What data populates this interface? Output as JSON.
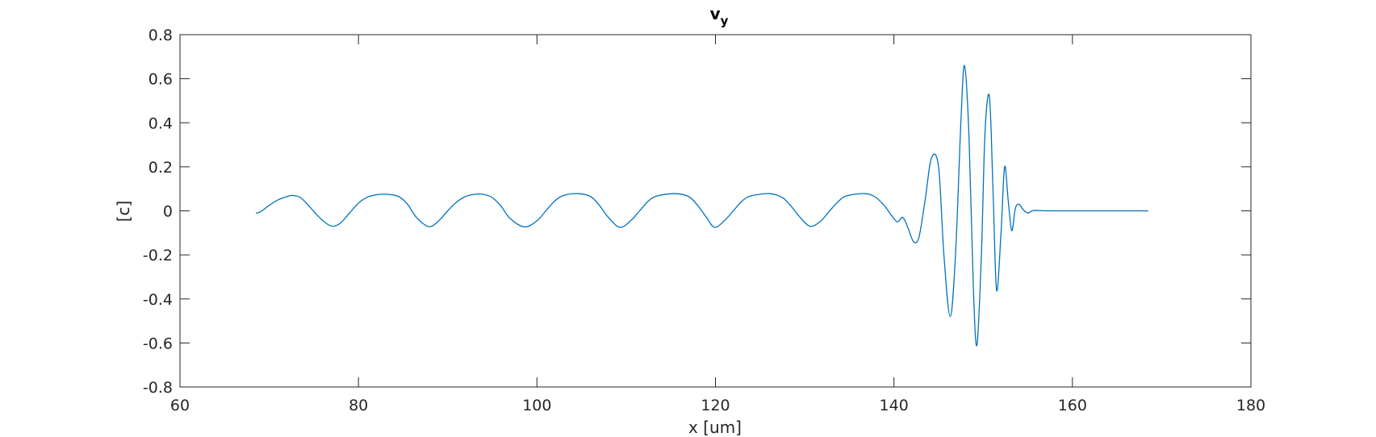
{
  "chart_data": {
    "type": "line",
    "title": "v",
    "title_subscript": "y",
    "xlabel": "x [um]",
    "ylabel": "[c]",
    "xlim": [
      60,
      180
    ],
    "ylim": [
      -0.8,
      0.8
    ],
    "xticks": [
      60,
      80,
      100,
      120,
      140,
      160,
      180
    ],
    "yticks": [
      -0.8,
      -0.6,
      -0.4,
      -0.2,
      0,
      0.2,
      0.4,
      0.6,
      0.8
    ],
    "xtick_labels": [
      "60",
      "80",
      "100",
      "120",
      "140",
      "160",
      "180"
    ],
    "ytick_labels": [
      "-0.8",
      "-0.6",
      "-0.4",
      "-0.2",
      "0",
      "0.2",
      "0.4",
      "0.6",
      "0.8"
    ],
    "grid": false,
    "box": true,
    "series": [
      {
        "color": "#0072BD",
        "x": [
          68.5,
          69.0,
          70.0,
          71.0,
          72.0,
          72.6,
          73.5,
          74.5,
          75.5,
          76.5,
          77.2,
          78.0,
          79.0,
          80.0,
          81.0,
          82.0,
          83.2,
          84.5,
          85.5,
          86.5,
          87.9,
          89.0,
          90.0,
          91.0,
          92.0,
          93.0,
          94.0,
          95.0,
          96.0,
          97.0,
          98.6,
          100.0,
          101.0,
          102.0,
          103.0,
          104.6,
          106.0,
          107.0,
          108.0,
          109.3,
          110.5,
          111.5,
          112.5,
          113.5,
          115.4,
          117.0,
          118.0,
          119.0,
          119.9,
          121.0,
          122.0,
          123.0,
          124.0,
          126.1,
          127.5,
          128.5,
          129.5,
          130.6,
          131.7,
          132.7,
          133.7,
          134.7,
          136.8,
          138.0,
          139.0,
          139.8,
          140.4,
          141.0,
          141.6,
          142.2,
          142.8,
          143.5,
          144.2,
          145.0,
          145.6,
          146.3,
          146.9,
          147.5,
          147.9,
          148.4,
          148.9,
          149.3,
          149.8,
          150.2,
          150.7,
          151.1,
          151.5,
          152.0,
          152.4,
          152.8,
          153.2,
          153.6,
          154.0,
          154.5,
          155.0,
          155.5,
          156.0,
          157.0,
          160.0,
          164.0,
          168.5
        ],
        "y": [
          -0.01,
          -0.005,
          0.025,
          0.05,
          0.065,
          0.07,
          0.06,
          0.02,
          -0.025,
          -0.06,
          -0.07,
          -0.055,
          -0.01,
          0.035,
          0.062,
          0.073,
          0.075,
          0.065,
          0.03,
          -0.03,
          -0.072,
          -0.045,
          0.0,
          0.04,
          0.065,
          0.075,
          0.075,
          0.06,
          0.02,
          -0.035,
          -0.073,
          -0.045,
          0.0,
          0.045,
          0.07,
          0.078,
          0.065,
          0.025,
          -0.03,
          -0.075,
          -0.045,
          0.0,
          0.045,
          0.068,
          0.078,
          0.065,
          0.025,
          -0.03,
          -0.075,
          -0.045,
          0.0,
          0.045,
          0.068,
          0.078,
          0.06,
          0.02,
          -0.03,
          -0.07,
          -0.05,
          -0.005,
          0.04,
          0.068,
          0.078,
          0.06,
          0.02,
          -0.025,
          -0.05,
          -0.03,
          -0.08,
          -0.14,
          -0.12,
          0.05,
          0.24,
          0.2,
          -0.2,
          -0.48,
          -0.2,
          0.4,
          0.66,
          0.35,
          -0.35,
          -0.61,
          -0.2,
          0.35,
          0.52,
          0.1,
          -0.36,
          -0.1,
          0.2,
          0.05,
          -0.09,
          0.01,
          0.03,
          0.005,
          -0.01,
          0.0,
          0.002,
          0.0,
          0.0,
          0.0,
          0.0
        ]
      }
    ]
  }
}
